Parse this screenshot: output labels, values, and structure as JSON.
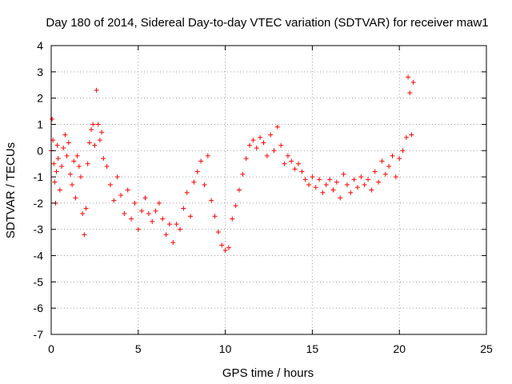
{
  "chart_data": {
    "type": "scatter",
    "title": "Day 180 of 2014, Sidereal Day-to-day VTEC variation (SDTVAR) for receiver maw1",
    "xlabel": "GPS time / hours",
    "ylabel": "SDTVAR / TECUs",
    "xlim": [
      0,
      25
    ],
    "ylim": [
      -7,
      4
    ],
    "xticks": [
      0,
      5,
      10,
      15,
      20,
      25
    ],
    "yticks": [
      -7,
      -6,
      -5,
      -4,
      -3,
      -2,
      -1,
      0,
      1,
      2,
      3,
      4
    ],
    "grid": true,
    "marker": "+",
    "marker_color": "#ff0000",
    "series": [
      {
        "name": "SDTVAR",
        "x": [
          0.0,
          0.05,
          0.1,
          0.15,
          0.2,
          0.25,
          0.3,
          0.35,
          0.4,
          0.5,
          0.6,
          0.7,
          0.8,
          0.9,
          1.0,
          1.1,
          1.2,
          1.3,
          1.4,
          1.5,
          1.6,
          1.7,
          1.8,
          1.9,
          2.0,
          2.1,
          2.2,
          2.3,
          2.4,
          2.5,
          2.6,
          2.7,
          2.8,
          2.9,
          3.0,
          3.2,
          3.4,
          3.6,
          3.8,
          4.0,
          4.2,
          4.4,
          4.6,
          4.8,
          5.0,
          5.2,
          5.4,
          5.6,
          5.8,
          6.0,
          6.2,
          6.4,
          6.6,
          6.8,
          7.0,
          7.2,
          7.4,
          7.6,
          7.8,
          8.0,
          8.2,
          8.4,
          8.6,
          8.8,
          9.0,
          9.2,
          9.4,
          9.6,
          9.8,
          10.0,
          10.2,
          10.4,
          10.6,
          10.8,
          11.0,
          11.2,
          11.4,
          11.6,
          11.8,
          12.0,
          12.2,
          12.4,
          12.6,
          12.8,
          13.0,
          13.2,
          13.4,
          13.6,
          13.8,
          14.0,
          14.2,
          14.4,
          14.6,
          14.8,
          15.0,
          15.2,
          15.4,
          15.6,
          15.8,
          16.0,
          16.2,
          16.4,
          16.6,
          16.8,
          17.0,
          17.2,
          17.4,
          17.6,
          17.8,
          18.0,
          18.2,
          18.4,
          18.6,
          18.8,
          19.0,
          19.2,
          19.4,
          19.6,
          19.8,
          20.0,
          20.2,
          20.4,
          20.5,
          20.6,
          20.7,
          20.8
        ],
        "y": [
          0.0,
          1.2,
          0.4,
          -0.5,
          -1.2,
          -2.0,
          -0.8,
          0.2,
          -0.3,
          -1.5,
          -0.6,
          0.1,
          0.6,
          -0.2,
          0.3,
          -0.9,
          -1.3,
          -0.4,
          -1.8,
          -0.2,
          -0.6,
          -1.0,
          -2.4,
          -3.2,
          -2.2,
          -0.5,
          0.3,
          0.8,
          1.0,
          0.2,
          2.3,
          1.0,
          0.4,
          0.7,
          -0.3,
          -0.6,
          -1.3,
          -1.9,
          -1.0,
          -1.7,
          -2.4,
          -1.5,
          -2.6,
          -2.0,
          -3.0,
          -2.3,
          -1.8,
          -2.4,
          -2.7,
          -2.3,
          -2.0,
          -2.6,
          -3.2,
          -2.8,
          -3.5,
          -2.8,
          -3.0,
          -2.2,
          -1.6,
          -2.5,
          -1.2,
          -0.8,
          -0.4,
          -1.3,
          -0.2,
          -1.9,
          -2.5,
          -3.1,
          -3.6,
          -3.8,
          -3.7,
          -2.6,
          -2.1,
          -1.5,
          -0.9,
          -0.3,
          0.2,
          0.4,
          0.1,
          0.5,
          0.3,
          -0.2,
          0.6,
          0.0,
          0.9,
          0.2,
          -0.5,
          -0.2,
          -0.4,
          -0.7,
          -0.5,
          -0.8,
          -1.1,
          -1.3,
          -1.0,
          -1.4,
          -1.1,
          -1.6,
          -1.3,
          -1.1,
          -1.5,
          -1.2,
          -1.8,
          -0.9,
          -1.3,
          -1.6,
          -1.1,
          -1.4,
          -1.0,
          -1.3,
          -1.1,
          -1.5,
          -0.8,
          -1.2,
          -0.4,
          -0.9,
          -0.6,
          -0.2,
          -1.0,
          -0.3,
          0.0,
          0.5,
          2.8,
          2.2,
          0.6,
          2.6
        ]
      }
    ]
  }
}
